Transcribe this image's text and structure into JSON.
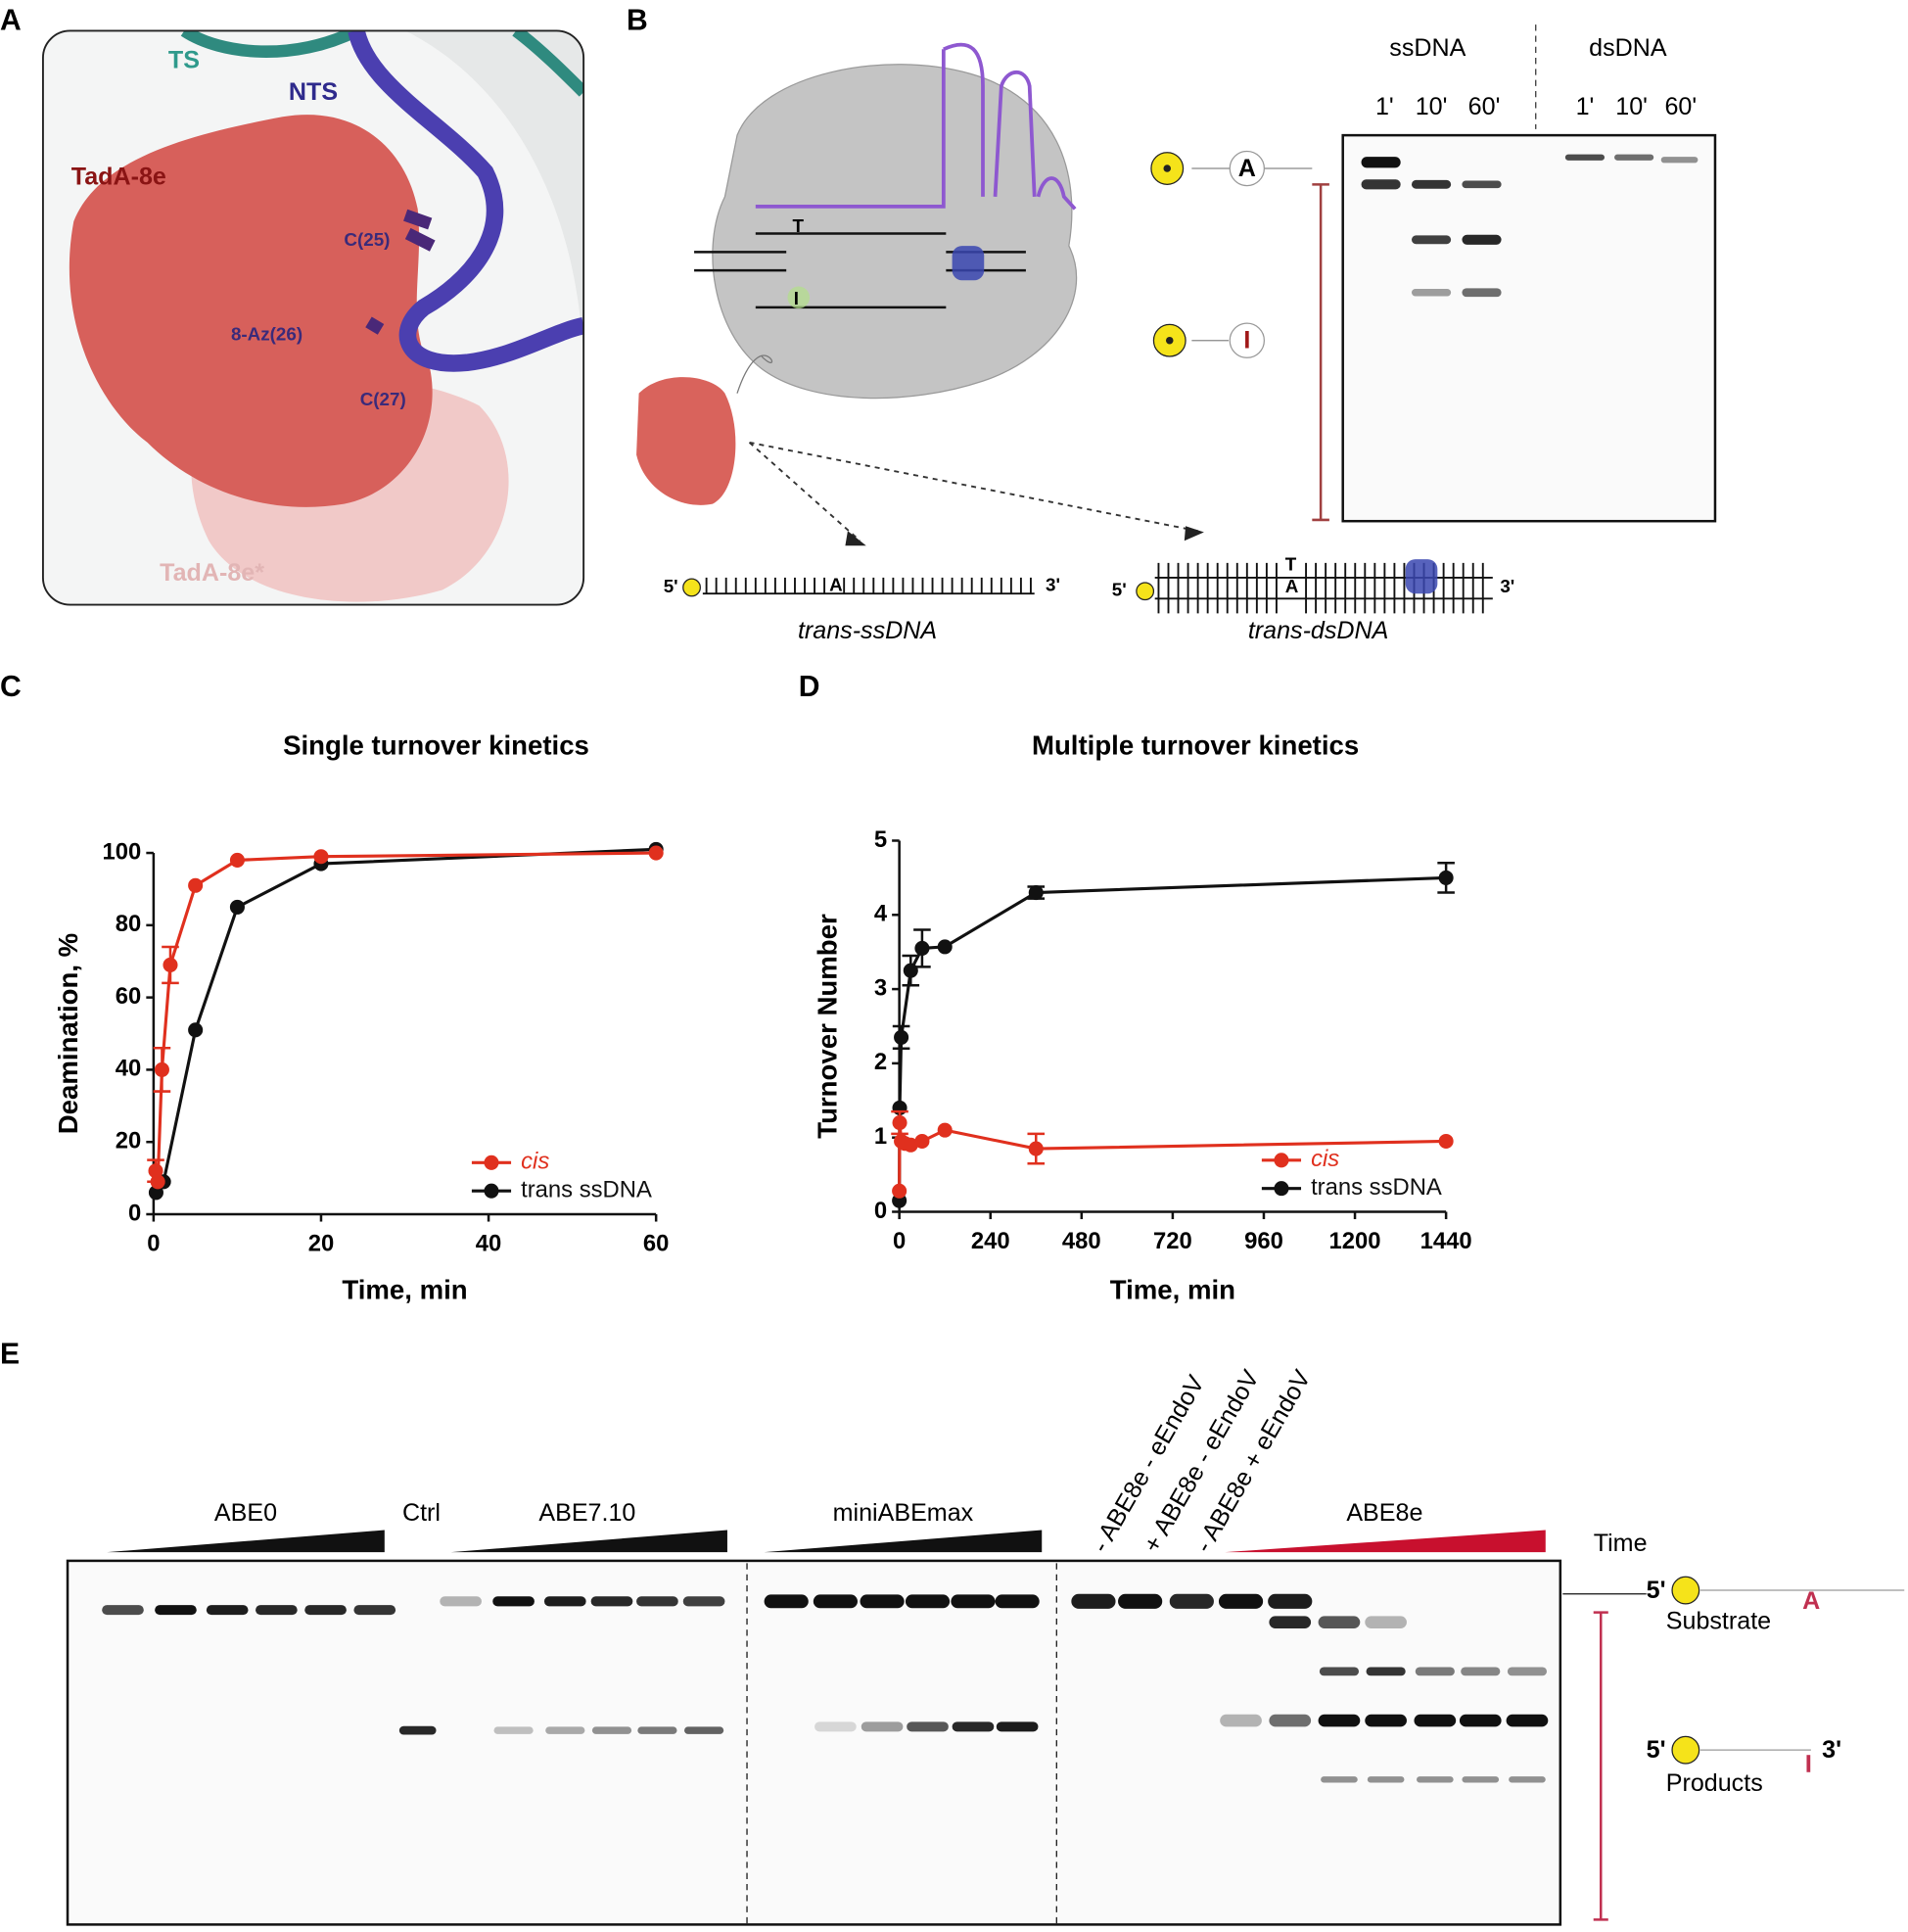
{
  "panel_labels": [
    "A",
    "B",
    "C",
    "D",
    "E"
  ],
  "panel_a": {
    "ts": "TS",
    "nts": "NTS",
    "tada": "TadA-8e",
    "c25": "C(25)",
    "az26": "8-Az(26)",
    "c27": "C(27)",
    "tada_star": "TadA-8e*"
  },
  "panel_b": {
    "ssdna": {
      "title": "ssDNA",
      "times": [
        "1'",
        "10'",
        "60'"
      ]
    },
    "dsdna": {
      "title": "dsDNA",
      "times": [
        "1'",
        "10'",
        "60'"
      ]
    },
    "complex_letters": [
      "T",
      "I"
    ],
    "substrate_base": "A",
    "product_base": "I",
    "trans_ssdna": {
      "five": "5'",
      "base": "A",
      "three": "3'",
      "label": "trans-ssDNA"
    },
    "trans_dsdna": {
      "five": "5'",
      "top_base": "T",
      "base": "A",
      "three": "3'",
      "label": "trans-dsDNA"
    }
  },
  "chart_data": [
    {
      "type": "line",
      "title": "Single turnover kinetics",
      "x_label": "Time, min",
      "y_label": "Deamination, %",
      "xlim": [
        0,
        60
      ],
      "xticks": [
        0,
        20,
        40,
        60
      ],
      "ylim": [
        0,
        100
      ],
      "yticks": [
        0,
        20,
        40,
        60,
        80,
        100
      ],
      "legend": "lower right",
      "series": [
        {
          "name": "cis",
          "color": "#e0301e",
          "x": [
            0.25,
            0.5,
            1,
            2,
            5,
            10,
            20,
            60
          ],
          "values": [
            12,
            9,
            40,
            69,
            91,
            98,
            99,
            100
          ],
          "errors": [
            3,
            null,
            6,
            5,
            null,
            null,
            null,
            null
          ]
        },
        {
          "name": "trans ssDNA",
          "color": "#111111",
          "x": [
            0.3,
            1.2,
            5,
            10,
            20,
            60
          ],
          "values": [
            6,
            9,
            51,
            85,
            97,
            101
          ],
          "errors": [
            null,
            null,
            null,
            null,
            null,
            null
          ]
        }
      ]
    },
    {
      "type": "line",
      "title": "Multiple turnover kinetics",
      "x_label": "Time, min",
      "y_label": "Turnover Number",
      "xlim": [
        0,
        1440
      ],
      "xticks": [
        0,
        240,
        480,
        720,
        960,
        1200,
        1440
      ],
      "ylim": [
        0,
        5
      ],
      "yticks": [
        0,
        1,
        2,
        3,
        4,
        5
      ],
      "legend": "lower right",
      "series": [
        {
          "name": "cis",
          "color": "#e0301e",
          "x": [
            0,
            1,
            5,
            15,
            30,
            60,
            120,
            360,
            1440
          ],
          "values": [
            0.28,
            1.2,
            0.95,
            0.92,
            0.9,
            0.95,
            1.1,
            0.85,
            0.95
          ],
          "errors": [
            null,
            0.15,
            null,
            null,
            null,
            null,
            null,
            0.2,
            null
          ]
        },
        {
          "name": "trans ssDNA",
          "color": "#111111",
          "x": [
            0,
            1,
            5,
            30,
            60,
            120,
            360,
            1440
          ],
          "values": [
            0.15,
            1.4,
            2.35,
            3.25,
            3.55,
            3.57,
            4.3,
            4.5
          ],
          "errors": [
            null,
            null,
            0.15,
            0.2,
            0.25,
            null,
            0.08,
            0.2
          ]
        }
      ]
    }
  ],
  "panel_e": {
    "groups": [
      "ABE0",
      "Ctrl",
      "ABE7.10",
      "miniABEmax",
      "ABE8e"
    ],
    "controls": [
      "- ABE8e - eEndoV",
      "+ ABE8e - eEndoV",
      "- ABE8e + eEndoV"
    ],
    "time": "Time",
    "substrate": {
      "five": "5'",
      "base": "A",
      "label": "Substrate"
    },
    "products": {
      "five": "5'",
      "three": "3'",
      "label": "Products"
    }
  }
}
